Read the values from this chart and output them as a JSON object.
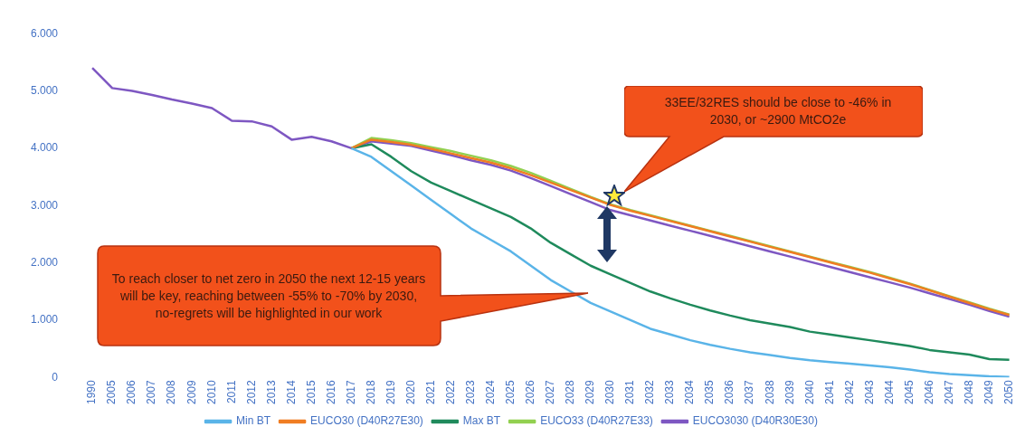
{
  "chart_data": {
    "type": "line",
    "categories": [
      "1990",
      "2005",
      "2006",
      "2007",
      "2008",
      "2009",
      "2010",
      "2011",
      "2012",
      "2013",
      "2014",
      "2015",
      "2016",
      "2017",
      "2018",
      "2019",
      "2020",
      "2021",
      "2022",
      "2023",
      "2024",
      "2025",
      "2026",
      "2027",
      "2028",
      "2029",
      "2030",
      "2031",
      "2032",
      "2033",
      "2034",
      "2035",
      "2036",
      "2037",
      "2038",
      "2039",
      "2040",
      "2041",
      "2042",
      "2043",
      "2044",
      "2045",
      "2046",
      "2047",
      "2048",
      "2049",
      "2050"
    ],
    "series": [
      {
        "name": "Min BT",
        "color": "#5ab4e8",
        "values": [
          null,
          null,
          null,
          null,
          null,
          null,
          null,
          null,
          null,
          null,
          null,
          null,
          null,
          4000,
          3850,
          3600,
          3350,
          3100,
          2850,
          2600,
          2400,
          2200,
          1950,
          1700,
          1500,
          1300,
          1150,
          1000,
          850,
          750,
          650,
          570,
          500,
          440,
          390,
          340,
          300,
          270,
          240,
          210,
          180,
          140,
          90,
          60,
          40,
          20,
          10
        ]
      },
      {
        "name": "EUCO30 (D40R27E30)",
        "color": "#f07d22",
        "values": [
          null,
          null,
          null,
          null,
          null,
          null,
          null,
          null,
          null,
          null,
          null,
          null,
          null,
          4000,
          4150,
          4110,
          4060,
          3990,
          3910,
          3830,
          3750,
          3650,
          3530,
          3400,
          3270,
          3140,
          3010,
          2910,
          2820,
          2730,
          2640,
          2550,
          2460,
          2370,
          2280,
          2190,
          2100,
          2010,
          1920,
          1830,
          1730,
          1630,
          1520,
          1410,
          1300,
          1190,
          1090
        ]
      },
      {
        "name": "Max BT",
        "color": "#1f8a5c",
        "values": [
          null,
          null,
          null,
          null,
          null,
          null,
          null,
          null,
          null,
          null,
          null,
          null,
          null,
          4000,
          4070,
          3850,
          3600,
          3400,
          3250,
          3100,
          2950,
          2800,
          2600,
          2350,
          2150,
          1950,
          1800,
          1650,
          1500,
          1380,
          1270,
          1170,
          1080,
          1000,
          940,
          880,
          800,
          750,
          700,
          650,
          600,
          550,
          480,
          440,
          400,
          320,
          310
        ]
      },
      {
        "name": "EUCO33 (D40R27E33)",
        "color": "#92d050",
        "values": [
          null,
          null,
          null,
          null,
          null,
          null,
          null,
          null,
          null,
          null,
          null,
          null,
          null,
          4000,
          4180,
          4140,
          4090,
          4020,
          3950,
          3870,
          3790,
          3690,
          3570,
          3430,
          3290,
          3150,
          3020,
          2920,
          2830,
          2740,
          2650,
          2560,
          2470,
          2380,
          2290,
          2200,
          2110,
          2020,
          1930,
          1840,
          1740,
          1640,
          1530,
          1420,
          1310,
          1200,
          1100
        ]
      },
      {
        "name": "EUCO3030 (D40R30E30)",
        "color": "#7e57c2",
        "values": [
          5400,
          5050,
          5000,
          4930,
          4850,
          4780,
          4700,
          4480,
          4470,
          4380,
          4150,
          4200,
          4120,
          4000,
          4120,
          4080,
          4040,
          3960,
          3880,
          3790,
          3710,
          3610,
          3480,
          3340,
          3200,
          3060,
          2920,
          2830,
          2740,
          2650,
          2560,
          2470,
          2380,
          2290,
          2200,
          2110,
          2020,
          1930,
          1840,
          1750,
          1660,
          1570,
          1470,
          1370,
          1270,
          1160,
          1060
        ]
      }
    ],
    "ylim": [
      0,
      6000
    ],
    "yticks": [
      {
        "value": 0,
        "label": "0"
      },
      {
        "value": 1000,
        "label": "1.000"
      },
      {
        "value": 2000,
        "label": "2.000"
      },
      {
        "value": 3000,
        "label": "3.000"
      },
      {
        "value": 4000,
        "label": "4.000"
      },
      {
        "value": 5000,
        "label": "5.000"
      },
      {
        "value": 6000,
        "label": "6.000"
      }
    ],
    "grid": false,
    "legend": "bottom",
    "marker": "none",
    "line_style": "solid",
    "annotations": [
      "33EE/32RES should be close to -46% in 2030, or ~2900 MtCO2e",
      "To reach closer to net zero in 2050 the next 12-15 years will be key, reaching between -55% to -70% by 2030, no-regrets will be highlighted in our work"
    ]
  }
}
